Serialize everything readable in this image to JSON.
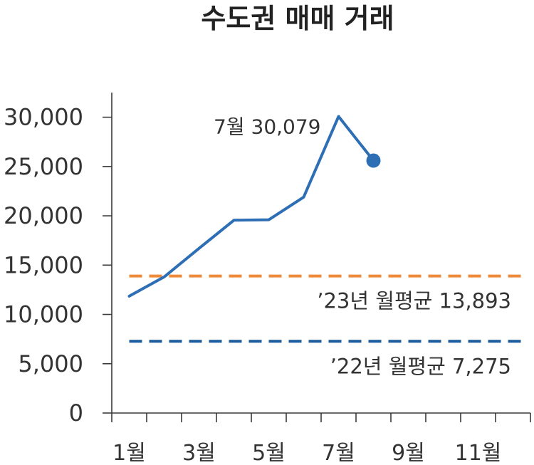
{
  "chart_data": {
    "type": "line",
    "title": "수도권 매매 거래",
    "x": [
      1,
      2,
      3,
      4,
      5,
      6,
      7,
      8
    ],
    "xlim": [
      1,
      12
    ],
    "x_ticks": [
      {
        "value": 1,
        "label": "1월"
      },
      {
        "value": 3,
        "label": "3월"
      },
      {
        "value": 5,
        "label": "5월"
      },
      {
        "value": 7,
        "label": "7월"
      },
      {
        "value": 9,
        "label": "9월"
      },
      {
        "value": 11,
        "label": "11월"
      }
    ],
    "ylim": [
      0,
      32500
    ],
    "y_ticks": [
      {
        "value": 0,
        "label": "0"
      },
      {
        "value": 5000,
        "label": "5,000"
      },
      {
        "value": 10000,
        "label": "10,000"
      },
      {
        "value": 15000,
        "label": "15,000"
      },
      {
        "value": 20000,
        "label": "20,000"
      },
      {
        "value": 25000,
        "label": "25,000"
      },
      {
        "value": 30000,
        "label": "30,000"
      }
    ],
    "series": [
      {
        "values": [
          11850,
          13800,
          16700,
          19550,
          19600,
          21900,
          30079,
          25600
        ],
        "color": "#2E6EB5",
        "end_marker": true
      }
    ],
    "annotations": [
      {
        "x": 7,
        "y": 30079,
        "label": "7월 30,079"
      }
    ],
    "reference_lines": [
      {
        "value": 13893,
        "label": "’23년 월평균 13,893",
        "color": "#EE8B3B"
      },
      {
        "value": 7275,
        "label": "’22년 월평균 7,275",
        "color": "#1C5C9C"
      }
    ],
    "grid": false
  }
}
